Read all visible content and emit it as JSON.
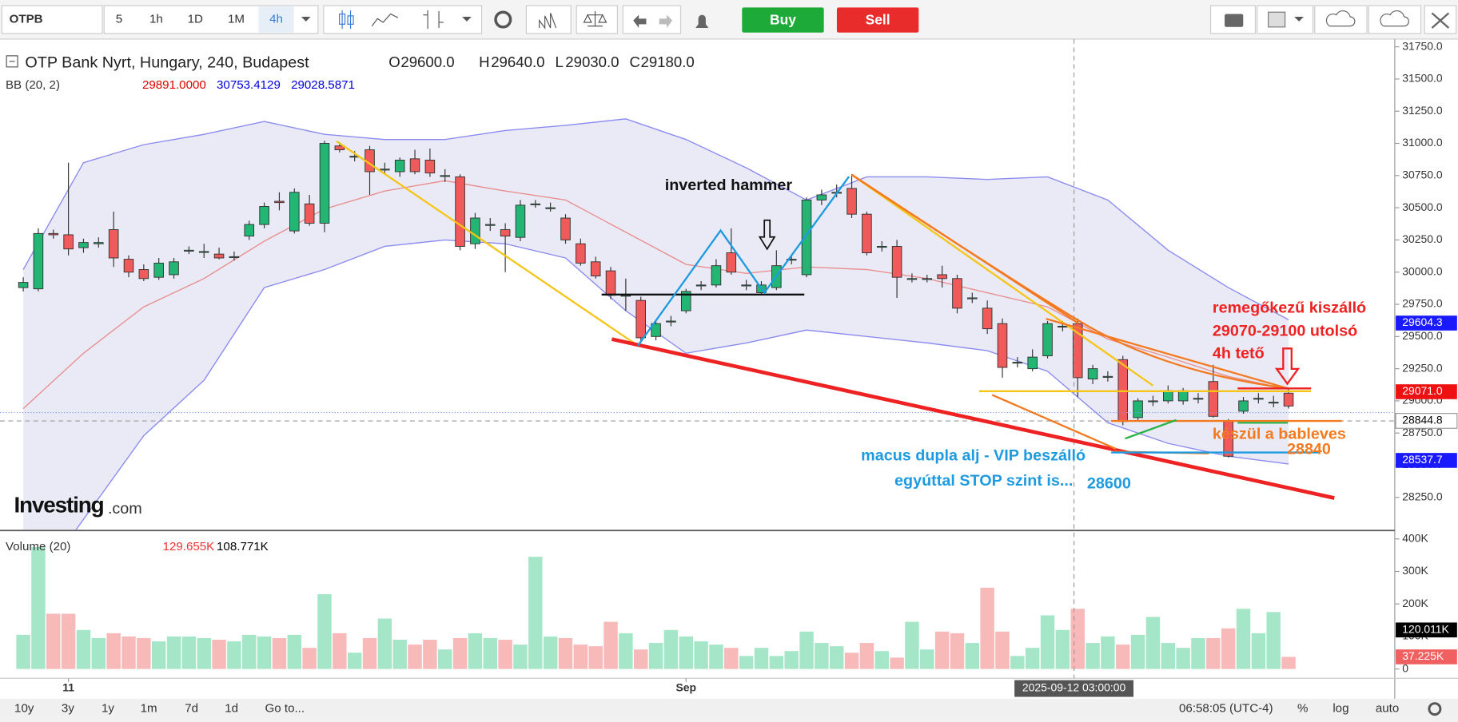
{
  "toolbar": {
    "symbol": "OTPB",
    "intervals": [
      "5",
      "1h",
      "1D",
      "1M",
      "4h"
    ],
    "buy": "Buy",
    "sell": "Sell"
  },
  "bottom_bar": {
    "ranges": [
      "10y",
      "3y",
      "1y",
      "1m",
      "7d",
      "1d"
    ],
    "goto": "Go to...",
    "clock": "06:58:05 (UTC-4)",
    "options": [
      "%",
      "log",
      "auto"
    ]
  },
  "watermark": {
    "brand": "Investing",
    "suffix": ".com"
  },
  "annotations": {
    "hammer": "inverted hammer",
    "exit": [
      "remegőkezű kiszálló",
      "29070-29100 utolsó",
      "4h tető"
    ],
    "soup": "készül a bableves",
    "soup_level": "28840",
    "entry": [
      "macus dupla alj - VIP beszálló",
      "egyúttal STOP szint is..."
    ],
    "entry_level": "28600"
  },
  "chart_data": {
    "type": "candlestick",
    "title": "OTP Bank Nyrt, Hungary, 240, Budapest",
    "ohlc_legend": [
      {
        "key": "O",
        "text": "29600.0"
      },
      {
        "key": "H",
        "text": "29640.0"
      },
      {
        "key": "L",
        "text": "29030.0"
      },
      {
        "key": "C",
        "text": "29180.0"
      }
    ],
    "indicator": {
      "name": "BB (20, 2)",
      "texts": [
        "29891.0000",
        "30753.4129",
        "29028.5871"
      ],
      "colors": [
        "#e00000",
        "#0000dd",
        "#0000dd"
      ]
    },
    "crosshair_label": "2025-09-12 03:00:00",
    "categories": [
      null,
      null,
      null,
      "11",
      null,
      null,
      null,
      null,
      null,
      null,
      null,
      null,
      null,
      null,
      null,
      null,
      null,
      null,
      null,
      null,
      null,
      null,
      null,
      null,
      null,
      null,
      null,
      null,
      null,
      null,
      null,
      null,
      null,
      null,
      null,
      null,
      null,
      null,
      null,
      null,
      null,
      null,
      null,
      null,
      "Sep",
      null,
      null,
      null,
      null,
      null,
      null,
      null,
      null,
      null,
      null,
      null,
      null,
      null,
      null,
      null,
      null,
      null,
      null,
      null,
      null,
      null,
      null,
      null,
      null,
      null,
      null,
      null,
      null,
      null,
      null,
      null,
      null,
      null,
      null,
      null,
      null,
      null,
      null,
      null,
      null
    ],
    "open": [
      29880,
      29870,
      30300,
      30290,
      30190,
      30220,
      30330,
      30100,
      30020,
      29960,
      29980,
      30170,
      30160,
      30140,
      30120,
      30280,
      30370,
      30550,
      30320,
      30530,
      30380,
      30980,
      30900,
      30950,
      30800,
      30780,
      30880,
      30870,
      30750,
      30740,
      30220,
      30370,
      30330,
      30270,
      30530,
      30500,
      30420,
      30220,
      30080,
      30010,
      29820,
      29780,
      29500,
      29620,
      29700,
      29900,
      29900,
      30150,
      29900,
      29840,
      29880,
      30100,
      29980,
      30560,
      30620,
      30650,
      30450,
      30200,
      30200,
      29950,
      29950,
      29980,
      29950,
      29800,
      29720,
      29600,
      29300,
      29250,
      29350,
      29580,
      29600,
      29170,
      29190,
      29320,
      28870,
      29000,
      29000,
      29000,
      29020,
      29150,
      28840,
      28920,
      29020,
      28990,
      29060
    ],
    "high": [
      29960,
      30340,
      30330,
      30850,
      30260,
      30270,
      30470,
      30130,
      30060,
      30110,
      30110,
      30200,
      30220,
      30190,
      30160,
      30400,
      30540,
      30620,
      30650,
      30600,
      31020,
      31010,
      30940,
      30980,
      30850,
      30890,
      30950,
      30960,
      30800,
      30760,
      30460,
      30420,
      30380,
      30560,
      30560,
      30540,
      30450,
      30260,
      30120,
      30040,
      29950,
      29810,
      29620,
      29660,
      29870,
      29930,
      30100,
      30340,
      29940,
      29930,
      30170,
      30130,
      30580,
      30640,
      30680,
      30760,
      30470,
      30240,
      30250,
      29990,
      29980,
      30050,
      29980,
      29840,
      29780,
      29640,
      29340,
      29400,
      29620,
      29620,
      29640,
      29280,
      29230,
      29350,
      29020,
      29040,
      29120,
      29100,
      29060,
      29280,
      28860,
      29030,
      29060,
      29040,
      29100
    ],
    "low": [
      29850,
      29850,
      30260,
      30130,
      30150,
      30190,
      30040,
      29960,
      29930,
      29940,
      29950,
      30140,
      30110,
      30100,
      30090,
      30250,
      30340,
      30480,
      30300,
      30360,
      30310,
      30930,
      30860,
      30600,
      30760,
      30740,
      30760,
      30740,
      30700,
      30170,
      30180,
      30320,
      30000,
      30240,
      30500,
      30470,
      30220,
      30050,
      29950,
      29790,
      29700,
      29450,
      29470,
      29580,
      29680,
      29860,
      29880,
      29980,
      29860,
      29820,
      29860,
      30060,
      29960,
      30520,
      30580,
      30420,
      30130,
      30160,
      29800,
      29920,
      29920,
      29880,
      29680,
      29760,
      29520,
      29180,
      29260,
      29230,
      29330,
      29540,
      29030,
      29130,
      29150,
      28810,
      28850,
      28960,
      28980,
      28970,
      28980,
      28870,
      28560,
      28900,
      28980,
      28950,
      28940
    ],
    "close": [
      29920,
      30300,
      30290,
      30180,
      30230,
      30230,
      30110,
      30000,
      29950,
      30070,
      30080,
      30170,
      30160,
      30110,
      30120,
      30370,
      30510,
      30540,
      30620,
      30380,
      31000,
      30950,
      30900,
      30780,
      30800,
      30870,
      30780,
      30770,
      30750,
      30200,
      30420,
      30370,
      30280,
      30520,
      30530,
      30500,
      30250,
      30070,
      29970,
      29820,
      29820,
      29490,
      29600,
      29620,
      29850,
      29900,
      30050,
      30000,
      29900,
      29900,
      30050,
      30100,
      30560,
      30600,
      30620,
      30450,
      30150,
      30200,
      29960,
      29950,
      29950,
      29950,
      29720,
      29800,
      29560,
      29260,
      29300,
      29340,
      29600,
      29580,
      29180,
      29250,
      29190,
      28840,
      29000,
      29000,
      29080,
      29080,
      29020,
      28880,
      28570,
      29000,
      29020,
      28990,
      28960
    ],
    "ylim": [
      28000,
      31810
    ],
    "yticks": [
      {
        "value": 28250,
        "label": "28250.0"
      },
      {
        "value": 28500,
        "label": "28500.0"
      },
      {
        "value": 28750,
        "label": "28750.0"
      },
      {
        "value": 29000,
        "label": "29000.0"
      },
      {
        "value": 29250,
        "label": "29250.0"
      },
      {
        "value": 29500,
        "label": "29500.0"
      },
      {
        "value": 29750,
        "label": "29750.0"
      },
      {
        "value": 30000,
        "label": "30000.0"
      },
      {
        "value": 30250,
        "label": "30250.0"
      },
      {
        "value": 30500,
        "label": "30500.0"
      },
      {
        "value": 30750,
        "label": "30750.0"
      },
      {
        "value": 31000,
        "label": "31000.0"
      },
      {
        "value": 31250,
        "label": "31250.0"
      },
      {
        "value": 31500,
        "label": "31500.0"
      },
      {
        "value": 31750,
        "label": "31750.0"
      }
    ],
    "price_markers": [
      {
        "value": 29604.3,
        "label": "29604.3",
        "color": "#1a1aff"
      },
      {
        "value": 29071,
        "label": "29071.0",
        "color": "#ee1111"
      },
      {
        "value": 28844.8,
        "label": "28844.8",
        "color": "#ffffff"
      },
      {
        "value": 28537.7,
        "label": "28537.7",
        "color": "#1a1aff"
      }
    ],
    "bollinger": {
      "index": [
        0,
        4,
        8,
        12,
        16,
        20,
        24,
        28,
        32,
        36,
        40,
        44,
        48,
        52,
        56,
        60,
        64,
        68,
        72,
        76,
        80,
        84
      ],
      "upper": [
        30020,
        30850,
        30990,
        31070,
        31170,
        31070,
        31030,
        31030,
        31100,
        31140,
        31190,
        31030,
        30810,
        30560,
        30740,
        30740,
        30720,
        30740,
        30560,
        30170,
        29880,
        29630
      ],
      "middle": [
        28940,
        29370,
        29730,
        29950,
        30240,
        30490,
        30630,
        30710,
        30630,
        30560,
        30310,
        30060,
        29990,
        30040,
        30020,
        29950,
        29840,
        29730,
        29480,
        29340,
        29190,
        29090
      ],
      "lower": [
        27430,
        28080,
        28730,
        29160,
        29880,
        30020,
        30200,
        30250,
        30220,
        30110,
        29700,
        29370,
        29450,
        29550,
        29500,
        29450,
        29390,
        29230,
        28830,
        28670,
        28570,
        28510
      ],
      "band_color": "#8c8cf0",
      "fill": "#e6e6f4",
      "middle_color": "#e89090"
    },
    "up_color": "#22b573",
    "down_color": "#f05a5a",
    "grid": false,
    "volume": {
      "name": "Volume (20)",
      "legend_texts": [
        "129.655K",
        "108.771K"
      ],
      "legend_colors": [
        "#ee3333",
        "#000000"
      ],
      "values": [
        105,
        375,
        170,
        170,
        120,
        95,
        110,
        100,
        95,
        85,
        100,
        100,
        95,
        90,
        85,
        105,
        100,
        95,
        105,
        65,
        230,
        110,
        50,
        95,
        155,
        90,
        75,
        90,
        60,
        95,
        110,
        95,
        90,
        75,
        345,
        100,
        95,
        75,
        70,
        145,
        110,
        60,
        80,
        120,
        100,
        85,
        75,
        65,
        40,
        65,
        40,
        55,
        115,
        80,
        70,
        50,
        80,
        55,
        35,
        145,
        60,
        115,
        110,
        80,
        250,
        115,
        40,
        65,
        165,
        120,
        185,
        80,
        100,
        75,
        105,
        160,
        80,
        65,
        95,
        95,
        125,
        185,
        110,
        175,
        37.225
      ],
      "ylim": [
        0,
        420
      ],
      "yticks": [
        0,
        {
          "value": 100,
          "label": "100K"
        },
        {
          "value": 200,
          "label": "200K"
        },
        {
          "value": 300,
          "label": "300K"
        },
        {
          "value": 400,
          "label": "400K"
        }
      ],
      "markers": [
        {
          "value": 120.011,
          "label": "120.011K",
          "color": "#000000"
        },
        {
          "value": 37.225,
          "label": "37.225K",
          "color": "#f06060"
        }
      ],
      "up_color": "#a6e6c8",
      "down_color": "#f8b9b9"
    }
  }
}
